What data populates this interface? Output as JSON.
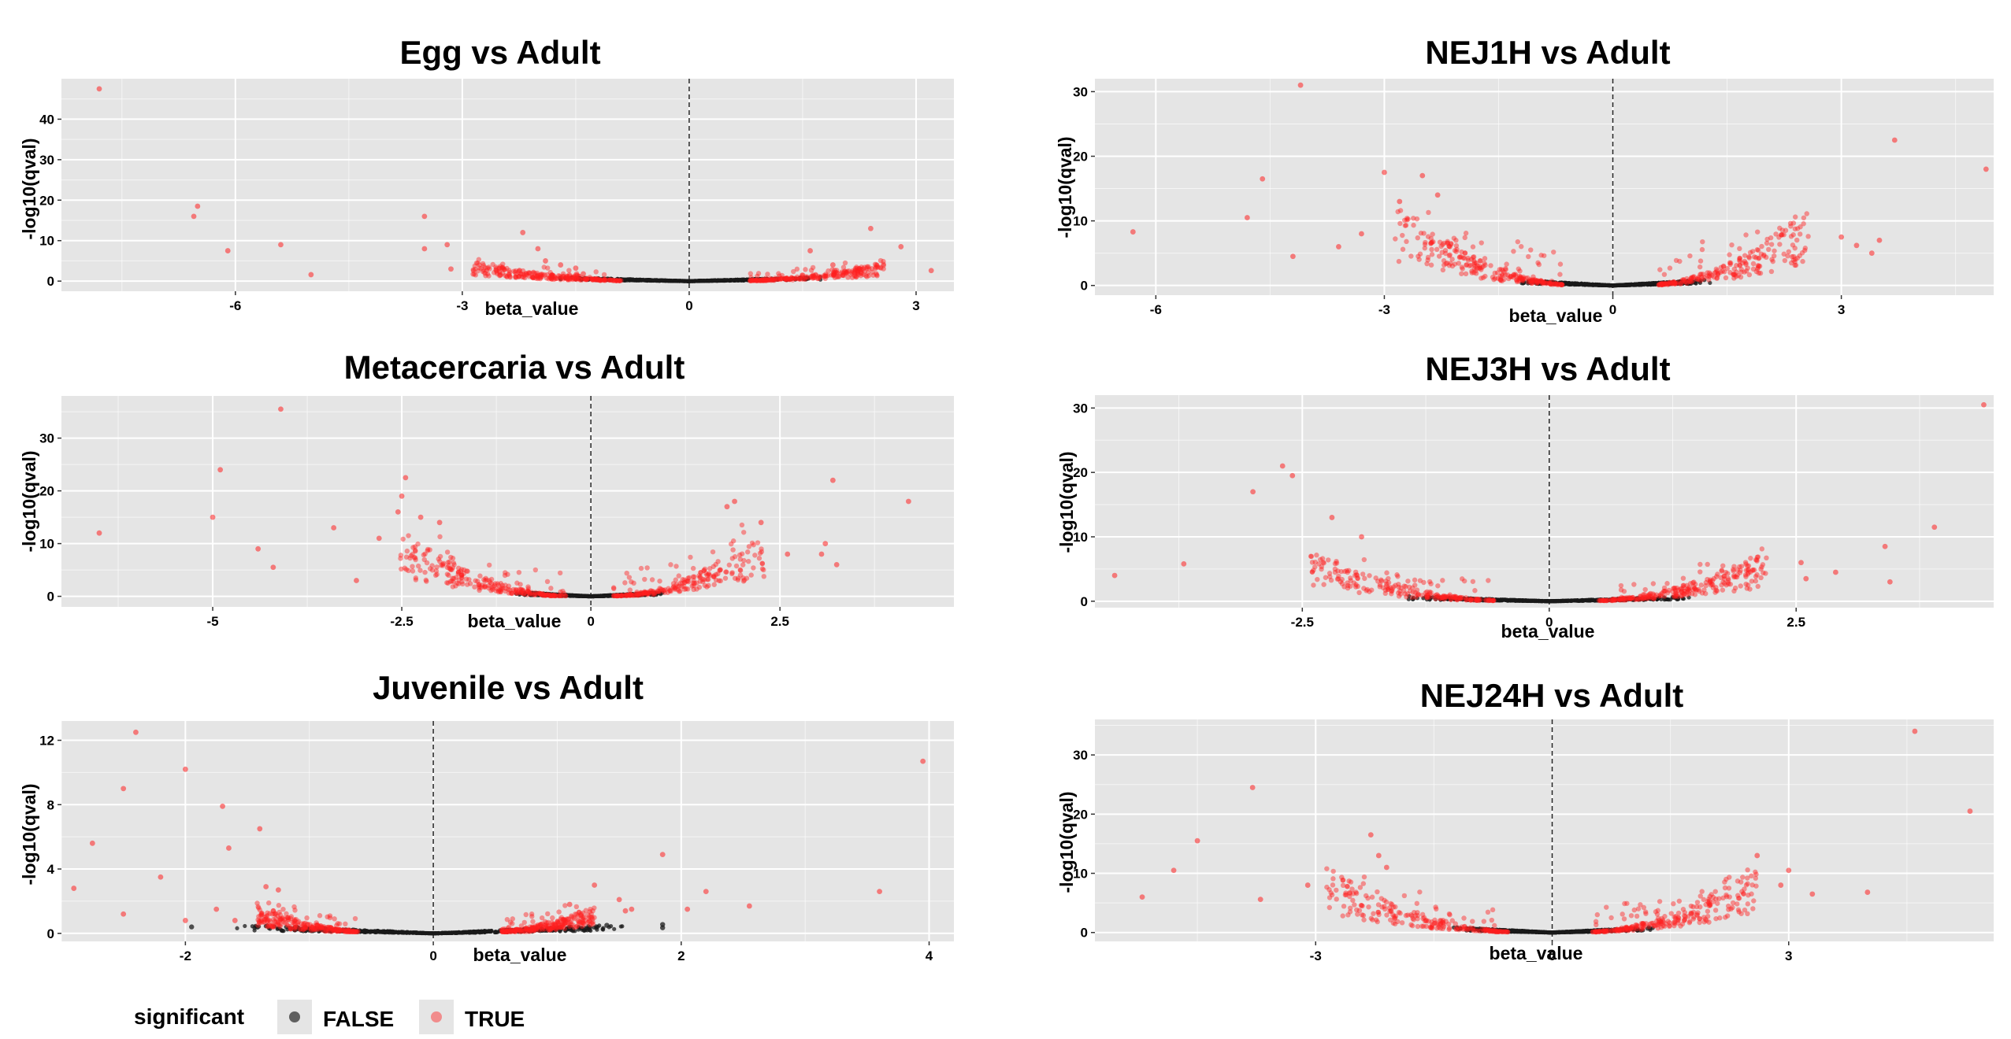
{
  "legend": {
    "title": "significant",
    "items": [
      {
        "label": "FALSE",
        "color": "#333333"
      },
      {
        "label": "TRUE",
        "color": "#ff1a1a"
      }
    ]
  },
  "colors": {
    "panel_bg": "#e5e5e5",
    "grid": "#ffffff",
    "false_point": "#1a1a1a",
    "true_point": "#ff2020"
  },
  "chart_data": [
    {
      "type": "scatter",
      "title": "Egg vs Adult",
      "xlabel": "beta_value",
      "ylabel": "-log10(qval)",
      "xlim": [
        -8.3,
        3.5
      ],
      "ylim": [
        -2.5,
        50
      ],
      "xticks": [
        -6,
        -3,
        0,
        3
      ],
      "xtick_labels": [
        "-6",
        "-3",
        "0",
        "3"
      ],
      "yticks": [
        0,
        10,
        20,
        30,
        40
      ],
      "ytick_labels": [
        "0",
        "10",
        "20",
        "30",
        "40"
      ],
      "points_true": [
        [
          -7.8,
          47.5
        ],
        [
          -6.5,
          18.5
        ],
        [
          -6.55,
          16
        ],
        [
          -6.1,
          7.5
        ],
        [
          -5.4,
          9
        ],
        [
          -5.0,
          1.6
        ],
        [
          -3.5,
          16
        ],
        [
          -3.5,
          8
        ],
        [
          -3.2,
          9
        ],
        [
          -3.15,
          3
        ],
        [
          -2.7,
          2
        ],
        [
          -2.2,
          12
        ],
        [
          -2.0,
          8
        ],
        [
          -1.9,
          5
        ],
        [
          -1.7,
          4
        ],
        [
          -1.5,
          3.2
        ],
        [
          -1.4,
          1.8
        ],
        [
          1.6,
          7.5
        ],
        [
          1.9,
          4
        ],
        [
          2.3,
          3
        ],
        [
          2.4,
          13
        ],
        [
          2.8,
          8.5
        ],
        [
          3.2,
          2.6
        ]
      ],
      "wings": {
        "true_inner": 0.8,
        "true_outer": 2.6,
        "y_max": 5.5
      },
      "false_curve": {
        "x_half": 1.8,
        "peak": 0.9
      }
    },
    {
      "type": "scatter",
      "title": "Metacercaria vs Adult",
      "xlabel": "beta_value",
      "ylabel": "-log10(qval)",
      "xlim": [
        -7.0,
        4.8
      ],
      "ylim": [
        -2,
        38
      ],
      "xticks": [
        -5,
        -2.5,
        0,
        2.5
      ],
      "xtick_labels": [
        "-5",
        "-2.5",
        "0",
        "2.5"
      ],
      "yticks": [
        0,
        10,
        20,
        30
      ],
      "ytick_labels": [
        "0",
        "10",
        "20",
        "30"
      ],
      "points_true": [
        [
          -4.1,
          35.5
        ],
        [
          -4.9,
          24
        ],
        [
          -5.0,
          15
        ],
        [
          -6.5,
          12
        ],
        [
          -4.4,
          9
        ],
        [
          -4.2,
          5.5
        ],
        [
          -3.4,
          13
        ],
        [
          -2.8,
          11
        ],
        [
          -2.45,
          22.5
        ],
        [
          -2.5,
          19
        ],
        [
          -2.55,
          16
        ],
        [
          -2.25,
          15
        ],
        [
          -2.0,
          14
        ],
        [
          -3.1,
          3
        ],
        [
          1.9,
          18
        ],
        [
          1.8,
          17
        ],
        [
          2.25,
          14
        ],
        [
          3.2,
          22
        ],
        [
          4.2,
          18
        ],
        [
          3.1,
          10
        ],
        [
          3.05,
          8
        ],
        [
          2.6,
          8
        ],
        [
          3.25,
          6
        ]
      ],
      "wings": {
        "true_inner": 0.3,
        "true_outer": 2.3,
        "y_max": 12
      },
      "false_curve": {
        "x_half": 1.0,
        "peak": 0.7
      }
    },
    {
      "type": "scatter",
      "title": "Juvenile vs Adult",
      "xlabel": "beta_value",
      "ylabel": "-log10(qval)",
      "xlim": [
        -3.0,
        4.2
      ],
      "ylim": [
        -0.5,
        13.2
      ],
      "xticks": [
        -2,
        0,
        2,
        4
      ],
      "xtick_labels": [
        "-2",
        "0",
        "2",
        "4"
      ],
      "yticks": [
        0,
        4,
        8,
        12
      ],
      "ytick_labels": [
        "0",
        "4",
        "8",
        "12"
      ],
      "points_true": [
        [
          -2.4,
          12.5
        ],
        [
          -2.0,
          10.2
        ],
        [
          -2.5,
          9
        ],
        [
          -1.7,
          7.9
        ],
        [
          -1.65,
          5.3
        ],
        [
          -1.4,
          6.5
        ],
        [
          -2.75,
          5.6
        ],
        [
          -2.9,
          2.8
        ],
        [
          -2.2,
          3.5
        ],
        [
          -2.5,
          1.2
        ],
        [
          -1.75,
          1.5
        ],
        [
          -1.25,
          2.7
        ],
        [
          -1.35,
          2.9
        ],
        [
          1.1,
          1.8
        ],
        [
          1.3,
          3
        ],
        [
          1.5,
          2.1
        ],
        [
          1.55,
          1.4
        ],
        [
          1.6,
          1.5
        ],
        [
          1.85,
          4.9
        ],
        [
          2.2,
          2.6
        ],
        [
          2.05,
          1.5
        ],
        [
          2.55,
          1.7
        ],
        [
          3.6,
          2.6
        ],
        [
          3.95,
          10.7
        ],
        [
          -2.0,
          0.8
        ],
        [
          -1.6,
          0.8
        ]
      ],
      "points_false": [
        [
          1.85,
          0.55
        ],
        [
          1.85,
          0.35
        ],
        [
          1.4,
          0.5
        ],
        [
          -1.95,
          0.4
        ]
      ],
      "wings": {
        "true_inner": 0.55,
        "true_outer": 1.3,
        "y_max": 2.2
      },
      "false_curve": {
        "x_half": 1.6,
        "peak": 0.5
      }
    },
    {
      "type": "scatter",
      "title": "NEJ1H vs Adult",
      "xlabel": "beta_value",
      "ylabel": "-log10(qval)",
      "xlim": [
        -6.8,
        5.0
      ],
      "ylim": [
        -1.5,
        32
      ],
      "xticks": [
        -6,
        -3,
        0,
        3
      ],
      "xtick_labels": [
        "-6",
        "-3",
        "0",
        "3"
      ],
      "yticks": [
        0,
        10,
        20,
        30
      ],
      "ytick_labels": [
        "0",
        "10",
        "20",
        "30"
      ],
      "points_true": [
        [
          -4.1,
          31
        ],
        [
          -6.3,
          8.3
        ],
        [
          -4.6,
          16.5
        ],
        [
          -4.8,
          10.5
        ],
        [
          -4.2,
          4.5
        ],
        [
          -3.0,
          17.5
        ],
        [
          -2.8,
          13
        ],
        [
          -2.5,
          17
        ],
        [
          -2.3,
          14
        ],
        [
          -3.6,
          6
        ],
        [
          -3.3,
          8
        ],
        [
          3.7,
          22.5
        ],
        [
          4.9,
          18
        ],
        [
          3.0,
          7.5
        ],
        [
          3.2,
          6.2
        ],
        [
          3.4,
          5
        ],
        [
          3.5,
          7
        ]
      ],
      "wings": {
        "true_inner": 0.6,
        "true_outer": 2.6,
        "y_max": 13
      },
      "false_curve": {
        "x_half": 1.3,
        "peak": 0.8
      }
    },
    {
      "type": "scatter",
      "title": "NEJ3H vs Adult",
      "xlabel": "beta_value",
      "ylabel": "-log10(qval)",
      "xlim": [
        -4.6,
        4.5
      ],
      "ylim": [
        -1,
        32
      ],
      "xticks": [
        -2.5,
        0,
        2.5
      ],
      "xtick_labels": [
        "-2.5",
        "0",
        "2.5"
      ],
      "yticks": [
        0,
        10,
        20,
        30
      ],
      "ytick_labels": [
        "0",
        "10",
        "20",
        "30"
      ],
      "points_true": [
        [
          -2.7,
          21
        ],
        [
          -2.6,
          19.5
        ],
        [
          -3.0,
          17
        ],
        [
          -4.4,
          4
        ],
        [
          -3.7,
          5.8
        ],
        [
          -2.2,
          13
        ],
        [
          -1.9,
          10
        ],
        [
          4.4,
          30.5
        ],
        [
          3.9,
          11.5
        ],
        [
          3.4,
          8.5
        ],
        [
          3.45,
          3
        ],
        [
          2.55,
          6
        ],
        [
          2.6,
          3.5
        ],
        [
          2.9,
          4.5
        ]
      ],
      "wings": {
        "true_inner": 0.5,
        "true_outer": 2.2,
        "y_max": 8
      },
      "false_curve": {
        "x_half": 1.5,
        "peak": 0.7
      }
    },
    {
      "type": "scatter",
      "title": "NEJ24H vs Adult",
      "xlabel": "beta_value",
      "ylabel": "-log10(qval)",
      "xlim": [
        -5.8,
        5.6
      ],
      "ylim": [
        -1.5,
        36
      ],
      "xticks": [
        -3,
        0,
        3
      ],
      "xtick_labels": [
        "-3",
        "0",
        "3"
      ],
      "yticks": [
        0,
        10,
        20,
        30
      ],
      "ytick_labels": [
        "0",
        "10",
        "20",
        "30"
      ],
      "points_true": [
        [
          -5.2,
          6
        ],
        [
          -4.8,
          10.5
        ],
        [
          -4.5,
          15.5
        ],
        [
          -3.8,
          24.5
        ],
        [
          -3.7,
          5.6
        ],
        [
          -3.1,
          8
        ],
        [
          -2.3,
          16.5
        ],
        [
          -2.2,
          13
        ],
        [
          -2.1,
          11
        ],
        [
          4.6,
          34
        ],
        [
          5.3,
          20.5
        ],
        [
          4.0,
          6.8
        ],
        [
          3.3,
          6.5
        ],
        [
          2.6,
          13
        ],
        [
          2.9,
          8
        ],
        [
          3.0,
          10.5
        ]
      ],
      "wings": {
        "true_inner": 0.5,
        "true_outer": 2.6,
        "y_max": 11
      },
      "false_curve": {
        "x_half": 1.3,
        "peak": 0.8
      }
    }
  ]
}
